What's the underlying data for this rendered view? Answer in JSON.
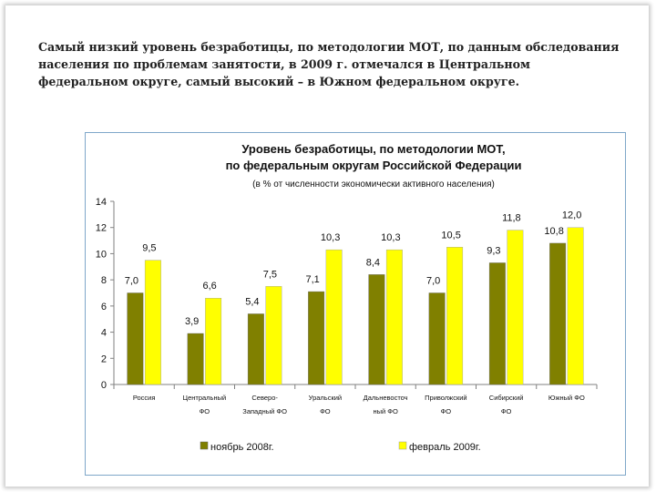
{
  "intro_text": "Самый низкий уровень безработицы, по методологии МОТ, по данным обследования населения по проблемам занятости, в 2009 г. отмечался в Центральном федеральном округе, самый высокий – в Южном федеральном округе.",
  "chart_data": {
    "type": "bar",
    "title": [
      "Уровень безработицы, по методологии МОТ,",
      "по федеральным округам Российской Федерации"
    ],
    "subtitle": "(в % от численности экономически активного населения)",
    "categories": [
      [
        "Россия"
      ],
      [
        "Центральный",
        "ФО"
      ],
      [
        "Северо-",
        "Западный ФО"
      ],
      [
        "Уральский",
        "ФО"
      ],
      [
        "Дальневосточ",
        "ный ФО"
      ],
      [
        "Приволжский",
        "ФО"
      ],
      [
        "Сибирский",
        "ФО"
      ],
      [
        "Южный ФО"
      ]
    ],
    "series": [
      {
        "name": "ноябрь 2008г.",
        "color": "#808000",
        "values": [
          7.0,
          3.9,
          5.4,
          7.1,
          8.4,
          7.0,
          9.3,
          10.8
        ],
        "labels": [
          "7,0",
          "3,9",
          "5,4",
          "7,1",
          "8,4",
          "7,0",
          "9,3",
          "10,8"
        ]
      },
      {
        "name": "февраль 2009г.",
        "color": "#ffff00",
        "values": [
          9.5,
          6.6,
          7.5,
          10.3,
          10.3,
          10.5,
          11.8,
          12.0
        ],
        "labels": [
          "9,5",
          "6,6",
          "7,5",
          "10,3",
          "10,3",
          "10,5",
          "11,8",
          "12,0"
        ]
      }
    ],
    "ylim": [
      0,
      14
    ],
    "yticks": [
      "0",
      "2",
      "4",
      "6",
      "8",
      "10",
      "12",
      "14"
    ],
    "grid": false,
    "legend": "bottom"
  }
}
